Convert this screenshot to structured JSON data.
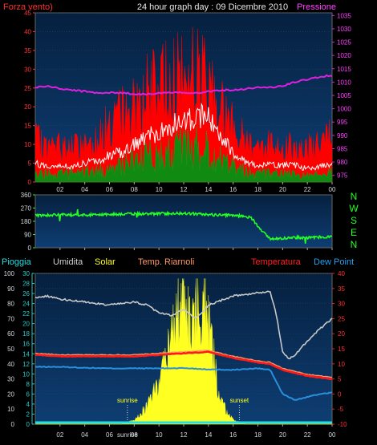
{
  "header": {
    "left_label": "Forza vento)",
    "title": "24 hour graph day : 09 Dicembre 2010",
    "right_label": "Pressione"
  },
  "colors": {
    "background": "#000000",
    "panel_top": "#06203f",
    "panel_bottom": "#0e3e73",
    "wind_gust": "#ff0000",
    "wind_avg": "#ffffff",
    "wind_speed": "#118a11",
    "pressure": "#e020e0",
    "direction": "#22ff22",
    "humidity": "#c8c8c8",
    "temperature": "#ff1a1a",
    "temp_riarnoli": "#ff9a66",
    "dew_point": "#2a8fdc",
    "solar": "#ffff22",
    "rain": "#22e0e0",
    "rain_axis": "#22cccc",
    "tick_text": "#cfd6dd",
    "red_text": "#ff3030",
    "magenta_text": "#ff40ff",
    "green_text": "#22ff22"
  },
  "legend": {
    "pioggia": "Pioggia",
    "umidita": "Umidita",
    "solar": "Solar",
    "temp_riarnoli": "Temp. Riarnoli",
    "temperatura": "Temperatura",
    "dew_point": "Dew Point"
  },
  "direction_labels": [
    "N",
    "W",
    "S",
    "E",
    "N"
  ],
  "chart_data": [
    {
      "type": "area",
      "x_ticks": [
        "02",
        "04",
        "06",
        "08",
        "10",
        "12",
        "14",
        "16",
        "18",
        "20",
        "22",
        "00"
      ],
      "y_left": {
        "ticks": [
          "0",
          "5",
          "10",
          "15",
          "20",
          "25",
          "30",
          "35",
          "40",
          "45"
        ],
        "lim": [
          0,
          45
        ]
      },
      "y_right": {
        "ticks": [
          "975",
          "980",
          "985",
          "990",
          "995",
          "1000",
          "1005",
          "1010",
          "1015",
          "1020",
          "1025",
          "1030",
          "1035"
        ],
        "lim": [
          972.5,
          1036
        ]
      },
      "series": [
        {
          "key": "gust",
          "points": [
            [
              0,
              11
            ],
            [
              1,
              9
            ],
            [
              2,
              9.5
            ],
            [
              3,
              9
            ],
            [
              4,
              10
            ],
            [
              5,
              12
            ],
            [
              6,
              15
            ],
            [
              7,
              18
            ],
            [
              8,
              20
            ],
            [
              9,
              24
            ],
            [
              10,
              25
            ],
            [
              11,
              28
            ],
            [
              12,
              28
            ],
            [
              13,
              30
            ],
            [
              14,
              27
            ],
            [
              15,
              20
            ],
            [
              16,
              15
            ],
            [
              17,
              11
            ],
            [
              18,
              10
            ],
            [
              19,
              10
            ],
            [
              20,
              10
            ],
            [
              21,
              9
            ],
            [
              22,
              9
            ],
            [
              23,
              10
            ],
            [
              24,
              12
            ]
          ]
        },
        {
          "key": "avg",
          "points": [
            [
              0,
              5
            ],
            [
              1,
              4
            ],
            [
              2,
              4.5
            ],
            [
              3,
              4
            ],
            [
              4,
              5
            ],
            [
              5,
              5.5
            ],
            [
              6,
              7
            ],
            [
              7,
              8
            ],
            [
              8,
              10
            ],
            [
              9,
              12
            ],
            [
              10,
              13
            ],
            [
              11,
              15
            ],
            [
              12,
              16
            ],
            [
              13,
              18
            ],
            [
              14,
              17
            ],
            [
              15,
              12
            ],
            [
              16,
              8
            ],
            [
              17,
              5.5
            ],
            [
              18,
              4.5
            ],
            [
              19,
              4.5
            ],
            [
              20,
              4.5
            ],
            [
              21,
              4.5
            ],
            [
              22,
              3.5
            ],
            [
              23,
              4
            ],
            [
              24,
              5
            ]
          ]
        },
        {
          "key": "speed",
          "points": [
            [
              0,
              3
            ],
            [
              1,
              2.5
            ],
            [
              2,
              3
            ],
            [
              3,
              2.5
            ],
            [
              4,
              3
            ],
            [
              5,
              3.5
            ],
            [
              6,
              4
            ],
            [
              7,
              5
            ],
            [
              8,
              6
            ],
            [
              9,
              7
            ],
            [
              10,
              8
            ],
            [
              11,
              9
            ],
            [
              12,
              10
            ],
            [
              13,
              10
            ],
            [
              14,
              9
            ],
            [
              15,
              7
            ],
            [
              16,
              5
            ],
            [
              17,
              3.5
            ],
            [
              18,
              2.5
            ],
            [
              19,
              2.5
            ],
            [
              20,
              2.5
            ],
            [
              21,
              2.5
            ],
            [
              22,
              2
            ],
            [
              23,
              2
            ],
            [
              24,
              3
            ]
          ]
        },
        {
          "key": "pressure",
          "points": [
            [
              0,
              1008
            ],
            [
              1,
              1008.5
            ],
            [
              2,
              1007.5
            ],
            [
              3,
              1007
            ],
            [
              4,
              1006.5
            ],
            [
              5,
              1006
            ],
            [
              6,
              1006
            ],
            [
              7,
              1006
            ],
            [
              8,
              1005.5
            ],
            [
              9,
              1005.5
            ],
            [
              10,
              1005.8
            ],
            [
              11,
              1006
            ],
            [
              12,
              1006
            ],
            [
              13,
              1006
            ],
            [
              14,
              1006.5
            ],
            [
              15,
              1007
            ],
            [
              16,
              1007
            ],
            [
              17,
              1007.5
            ],
            [
              18,
              1008
            ],
            [
              19,
              1008
            ],
            [
              20,
              1008.5
            ],
            [
              21,
              1010
            ],
            [
              22,
              1011
            ],
            [
              23,
              1012
            ],
            [
              24,
              1012.5
            ]
          ]
        }
      ]
    },
    {
      "type": "line",
      "x_ticks": [
        "02",
        "04",
        "06",
        "08",
        "10",
        "12",
        "14",
        "16",
        "18",
        "20",
        "22",
        "00"
      ],
      "y": {
        "ticks": [
          "0",
          "90",
          "180",
          "270",
          "360"
        ],
        "lim": [
          0,
          360
        ]
      },
      "series": [
        {
          "key": "direction",
          "points": [
            [
              0,
              220
            ],
            [
              2,
              225
            ],
            [
              4,
              222
            ],
            [
              6,
              228
            ],
            [
              8,
              230
            ],
            [
              10,
              232
            ],
            [
              12,
              235
            ],
            [
              14,
              225
            ],
            [
              16,
              220
            ],
            [
              17,
              215
            ],
            [
              17.5,
              200
            ],
            [
              18,
              150
            ],
            [
              18.5,
              100
            ],
            [
              19,
              60
            ],
            [
              20,
              65
            ],
            [
              21,
              70
            ],
            [
              22,
              68
            ],
            [
              23,
              72
            ],
            [
              24,
              75
            ]
          ]
        }
      ]
    },
    {
      "type": "line",
      "x_ticks": [
        "02",
        "04",
        "06",
        "08",
        "10",
        "12",
        "14",
        "16",
        "18",
        "20",
        "22",
        "00"
      ],
      "x_tick_sunrise_label": "sunrise",
      "annotations": [
        {
          "text": "sunrise",
          "x": 7.45
        },
        {
          "text": "sunset",
          "x": 16.5
        }
      ],
      "y_left": {
        "ticks": [
          "0",
          "10",
          "20",
          "30",
          "40",
          "50",
          "60",
          "70",
          "80",
          "90",
          "100"
        ],
        "lim": [
          0,
          100
        ]
      },
      "y_rain": {
        "ticks": [
          "0",
          "2",
          "4",
          "6",
          "8",
          "10",
          "12",
          "14",
          "16",
          "18",
          "20",
          "22",
          "24",
          "26",
          "28",
          "30"
        ],
        "lim": [
          0,
          30
        ]
      },
      "y_right": {
        "ticks": [
          "-10",
          "-5",
          "0",
          "5",
          "10",
          "15",
          "20",
          "25",
          "30",
          "35",
          "40"
        ],
        "lim": [
          -10,
          40
        ]
      },
      "series": [
        {
          "key": "humidity",
          "points": [
            [
              0,
              84
            ],
            [
              1,
              85
            ],
            [
              2,
              83
            ],
            [
              3,
              82
            ],
            [
              4,
              81
            ],
            [
              5,
              80
            ],
            [
              6,
              79
            ],
            [
              7,
              80
            ],
            [
              8,
              81
            ],
            [
              9,
              79
            ],
            [
              10,
              74
            ],
            [
              11,
              72
            ],
            [
              12,
              76
            ],
            [
              13,
              70
            ],
            [
              14,
              79
            ],
            [
              15,
              82
            ],
            [
              16,
              85
            ],
            [
              17,
              86
            ],
            [
              18,
              87
            ],
            [
              19,
              88
            ],
            [
              19.5,
              72
            ],
            [
              20,
              48
            ],
            [
              20.5,
              43
            ],
            [
              21,
              46
            ],
            [
              22,
              55
            ],
            [
              23,
              63
            ],
            [
              24,
              70
            ]
          ]
        },
        {
          "key": "temperature",
          "points": [
            [
              0,
              13
            ],
            [
              2,
              12.5
            ],
            [
              4,
              12.5
            ],
            [
              6,
              12.5
            ],
            [
              8,
              12.5
            ],
            [
              10,
              13
            ],
            [
              12,
              13.5
            ],
            [
              14,
              14
            ],
            [
              16,
              12
            ],
            [
              18,
              10.5
            ],
            [
              19,
              10
            ],
            [
              20,
              8
            ],
            [
              22,
              6
            ],
            [
              24,
              5
            ]
          ]
        },
        {
          "key": "temp_riarnoli",
          "points": [
            [
              0,
              13.5
            ],
            [
              2,
              13
            ],
            [
              4,
              13
            ],
            [
              6,
              13
            ],
            [
              8,
              13
            ],
            [
              10,
              13.5
            ],
            [
              12,
              14
            ],
            [
              14,
              14.5
            ],
            [
              16,
              12.5
            ],
            [
              18,
              11
            ],
            [
              19,
              10.5
            ],
            [
              20,
              8.5
            ],
            [
              22,
              6.5
            ],
            [
              24,
              5.5
            ]
          ]
        },
        {
          "key": "dew_point",
          "points": [
            [
              0,
              9
            ],
            [
              2,
              9
            ],
            [
              4,
              8.7
            ],
            [
              6,
              8.5
            ],
            [
              8,
              8.5
            ],
            [
              10,
              8.5
            ],
            [
              12,
              8.6
            ],
            [
              14,
              8.2
            ],
            [
              16,
              8
            ],
            [
              18,
              8.5
            ],
            [
              19,
              8
            ],
            [
              19.5,
              4
            ],
            [
              20,
              0
            ],
            [
              21,
              -2
            ],
            [
              22,
              -1
            ],
            [
              23,
              0
            ],
            [
              24,
              0.5
            ]
          ]
        },
        {
          "key": "solar",
          "points": [
            [
              0,
              0
            ],
            [
              7,
              0
            ],
            [
              8,
              1
            ],
            [
              9,
              4
            ],
            [
              10,
              10
            ],
            [
              11,
              20
            ],
            [
              11.5,
              26
            ],
            [
              12,
              28
            ],
            [
              12.5,
              23
            ],
            [
              13,
              27
            ],
            [
              13.5,
              28
            ],
            [
              14,
              24
            ],
            [
              14.5,
              14
            ],
            [
              15,
              5
            ],
            [
              16,
              1
            ],
            [
              17,
              0
            ],
            [
              24,
              0
            ]
          ]
        },
        {
          "key": "rain",
          "points": [
            [
              0,
              0.4
            ],
            [
              24,
              0.4
            ]
          ]
        }
      ]
    }
  ]
}
